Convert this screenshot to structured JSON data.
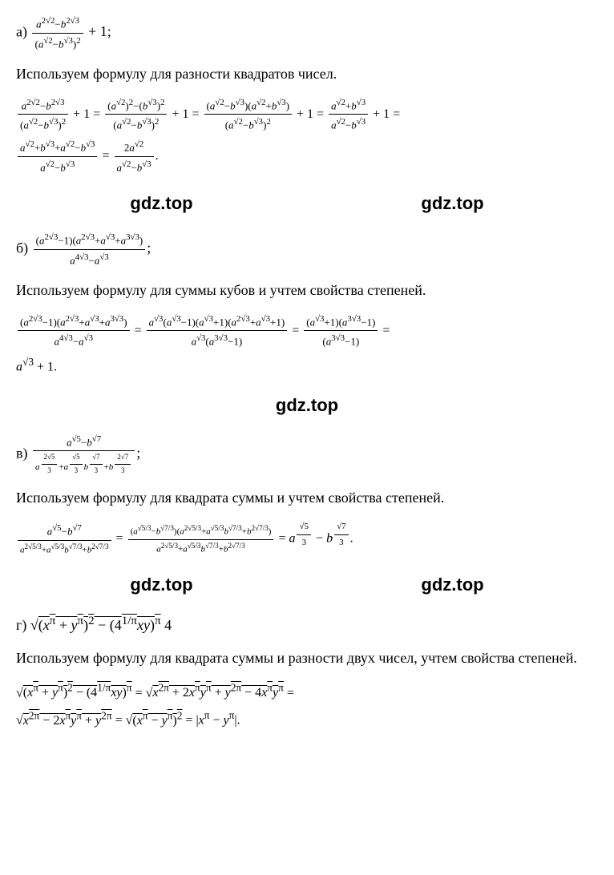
{
  "problem_a": {
    "label": "а)",
    "expr_html": "<span class='frac'><span class='num sm'><i>a</i><sup>2√2</sup>−<i>b</i><sup>2√3</sup></span><span class='den sm'>(<i>a</i><sup>√2</sup>−<i>b</i><sup>√3</sup>)<sup>2</sup></span></span> + 1;"
  },
  "text_a": "Используем формулу для разности квадратов чисел.",
  "solution_a": "<span class='frac'><span class='num sm'><i>a</i><sup>2√2</sup>−<i>b</i><sup>2√3</sup></span><span class='den sm'>(<i>a</i><sup>√2</sup>−<i>b</i><sup>√3</sup>)<sup>2</sup></span></span> + 1 = <span class='frac'><span class='num sm'>(<i>a</i><sup>√2</sup>)<sup>2</sup>−(<i>b</i><sup>√3</sup>)<sup>2</sup></span><span class='den sm'>(<i>a</i><sup>√2</sup>−<i>b</i><sup>√3</sup>)<sup>2</sup></span></span> + 1 = <span class='frac'><span class='num sm'>(<i>a</i><sup>√2</sup>−<i>b</i><sup>√3</sup>)(<i>a</i><sup>√2</sup>+<i>b</i><sup>√3</sup>)</span><span class='den sm'>(<i>a</i><sup>√2</sup>−<i>b</i><sup>√3</sup>)<sup>2</sup></span></span> + 1 = <span class='frac'><span class='num sm'><i>a</i><sup>√2</sup>+<i>b</i><sup>√3</sup></span><span class='den sm'><i>a</i><sup>√2</sup>−<i>b</i><sup>√3</sup></span></span> + 1 =",
  "solution_a2": "<span class='frac'><span class='num sm'><i>a</i><sup>√2</sup>+<i>b</i><sup>√3</sup>+<i>a</i><sup>√2</sup>−<i>b</i><sup>√3</sup></span><span class='den sm'><i>a</i><sup>√2</sup>−<i>b</i><sup>√3</sup></span></span> = <span class='frac'><span class='num sm'>2<i>a</i><sup>√2</sup></span><span class='den sm'><i>a</i><sup>√2</sup>−<i>b</i><sup>√3</sup></span></span>.",
  "watermark": "gdz.top",
  "problem_b": {
    "label": "б)",
    "expr_html": "<span class='frac'><span class='num sm'>(<i>a</i><sup>2√3</sup>−1)(<i>a</i><sup>2√3</sup>+<i>a</i><sup>√3</sup>+<i>a</i><sup>3√3</sup>)</span><span class='den sm'><i>a</i><sup>4√3</sup>−<i>a</i><sup>√3</sup></span></span>;"
  },
  "text_b": "Используем формулу для суммы кубов и учтем свойства степеней.",
  "solution_b": "<span class='frac'><span class='num sm'>(<i>a</i><sup>2√3</sup>−1)(<i>a</i><sup>2√3</sup>+<i>a</i><sup>√3</sup>+<i>a</i><sup>3√3</sup>)</span><span class='den sm'><i>a</i><sup>4√3</sup>−<i>a</i><sup>√3</sup></span></span> = <span class='frac'><span class='num sm'><i>a</i><sup>√3</sup>(<i>a</i><sup>√3</sup>−1)(<i>a</i><sup>√3</sup>+1)(<i>a</i><sup>2√3</sup>+<i>a</i><sup>√3</sup>+1)</span><span class='den sm'><i>a</i><sup>√3</sup>(<i>a</i><sup>3√3</sup>−1)</span></span> = <span class='frac'><span class='num sm'>(<i>a</i><sup>√3</sup>+1)(<i>a</i><sup>3√3</sup>−1)</span><span class='den sm'>(<i>a</i><sup>3√3</sup>−1)</span></span> =",
  "solution_b2": "<i>a</i><sup>√3</sup> + 1.",
  "problem_c": {
    "label": "в)",
    "expr_html": "<span class='frac'><span class='num sm'><i>a</i><sup>√5</sup>−<i>b</i><sup>√7</sup></span><span class='den smm'><i>a</i><sup><span class='frac' style='font-size:9px'><span class='num'>2√5</span><span class='den'>3</span></span></sup>+<i>a</i><sup><span class='frac' style='font-size:9px'><span class='num'>√5</span><span class='den'>3</span></span></sup><i>b</i><sup><span class='frac' style='font-size:9px'><span class='num'>√7</span><span class='den'>3</span></span></sup>+<i>b</i><sup><span class='frac' style='font-size:9px'><span class='num'>2√7</span><span class='den'>3</span></span></sup></span></span>;"
  },
  "text_c": "Используем формулу для квадрата суммы и учтем свойства степеней.",
  "solution_c": "<span class='frac'><span class='num sm'><i>a</i><sup>√5</sup>−<i>b</i><sup>√7</sup></span><span class='den smm'><i>a</i><sup>2√5/3</sup>+<i>a</i><sup>√5/3</sup><i>b</i><sup>√7/3</sup>+<i>b</i><sup>2√7/3</sup></span></span> = <span class='frac'><span class='num smm'>(<i>a</i><sup>√5/3</sup>−<i>b</i><sup>√7/3</sup>)(<i>a</i><sup>2√5/3</sup>+<i>a</i><sup>√5/3</sup><i>b</i><sup>√7/3</sup>+<i>b</i><sup>2√7/3</sup>)</span><span class='den smm'><i>a</i><sup>2√5/3</sup>+<i>a</i><sup>√5/3</sup><i>b</i><sup>√7/3</sup>+<i>b</i><sup>2√7/3</sup></span></span> = <i>a</i><sup><span class='frac smm'><span class='num'>√5</span><span class='den'>3</span></span></sup> − <i>b</i><sup><span class='frac smm'><span class='num'>√7</span><span class='den'>3</span></span></sup>.",
  "problem_d": {
    "label": "г)",
    "expr_html": "√<span class='rad'>(<i>x</i><sup>π</sup> + <i>y</i><sup>π</sup>)<sup>2</sup> − (4<sup>1/π</sup><i>xy</i>)<sup>π</sup></span> 4"
  },
  "text_d": "Используем формулу для квадрата суммы и разности двух чисел, учтем свойства степеней.",
  "solution_d": "√<span class='rad'>(<i>x</i><sup>π</sup> + <i>y</i><sup>π</sup>)<sup>2</sup> − (4<sup>1/π</sup><i>xy</i>)<sup>π</sup></span> = √<span class='rad'><i>x</i><sup>2π</sup> + 2<i>x</i><sup>π</sup><i>y</i><sup>π</sup> + <i>y</i><sup>2π</sup> − 4<i>x</i><sup>π</sup><i>y</i><sup>π</sup></span> =",
  "solution_d2": "√<span class='rad'><i>x</i><sup>2π</sup> − 2<i>x</i><sup>π</sup><i>y</i><sup>π</sup> + <i>y</i><sup>2π</sup></span> = √<span class='rad'>(<i>x</i><sup>π</sup> − <i>y</i><sup>π</sup>)<sup>2</sup></span> = |<i>x</i><sup>π</sup> − <i>y</i><sup>π</sup>|."
}
